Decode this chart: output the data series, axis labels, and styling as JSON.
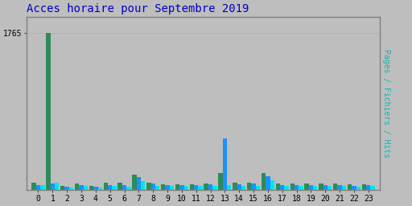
{
  "title": "Acces horaire pour Septembre 2019",
  "title_color": "#0000cc",
  "title_fontsize": 10,
  "background_color": "#bebebe",
  "plot_bg_color": "#bebebe",
  "hours": [
    0,
    1,
    2,
    3,
    4,
    5,
    6,
    7,
    8,
    9,
    10,
    11,
    12,
    13,
    14,
    15,
    16,
    17,
    18,
    19,
    20,
    21,
    22,
    23
  ],
  "pages": [
    80,
    1765,
    48,
    72,
    52,
    80,
    88,
    170,
    82,
    68,
    68,
    68,
    72,
    195,
    88,
    88,
    190,
    78,
    72,
    72,
    78,
    72,
    62,
    68
  ],
  "fichiers": [
    60,
    75,
    36,
    58,
    40,
    55,
    55,
    148,
    72,
    55,
    55,
    55,
    62,
    580,
    68,
    72,
    158,
    58,
    58,
    58,
    58,
    58,
    50,
    55
  ],
  "hits": [
    55,
    85,
    30,
    52,
    30,
    48,
    35,
    105,
    48,
    48,
    48,
    48,
    48,
    58,
    48,
    48,
    110,
    52,
    48,
    44,
    48,
    48,
    40,
    48
  ],
  "ylim": [
    0,
    1950
  ],
  "ytick": 1765,
  "bar_width": 0.3,
  "color_pages": "#2e8b57",
  "color_fichiers": "#1e90ff",
  "color_hits": "#00e5ee",
  "grid_color": "#b0b0b0",
  "border_color": "#808080",
  "ylabel_pages_color": "#2e8b57",
  "ylabel_fichiers_color": "#1e90ff",
  "ylabel_hits_color": "#00e5ee",
  "ylabel_slash_color": "#000000"
}
